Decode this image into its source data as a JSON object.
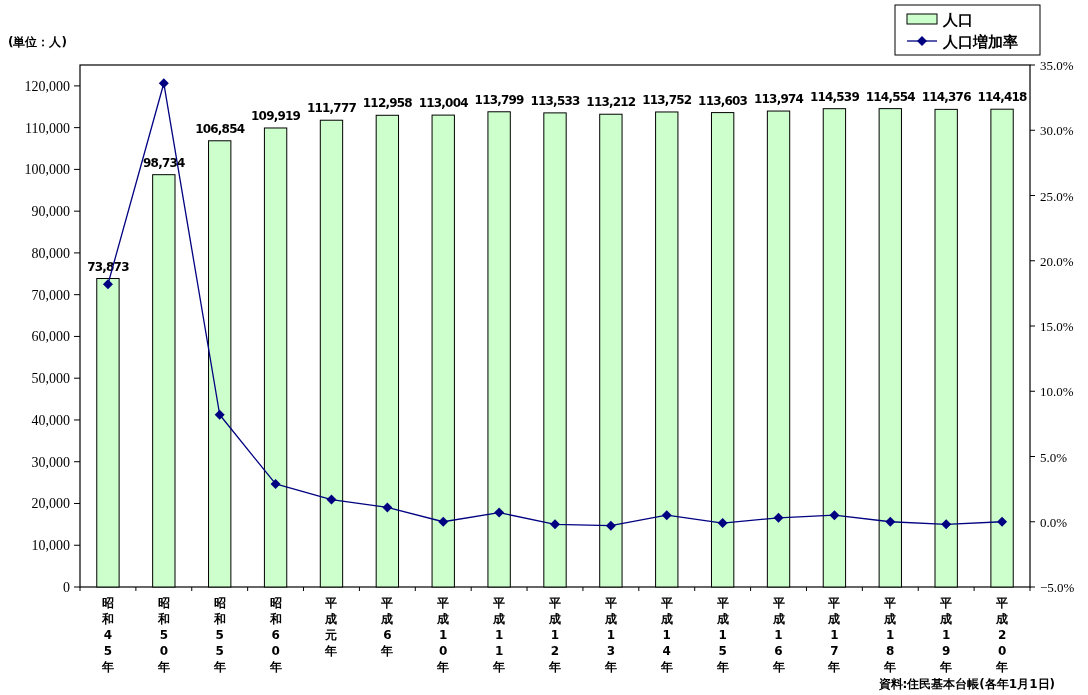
{
  "chart_data": {
    "type": "bar",
    "categories": [
      "昭和45年",
      "昭和50年",
      "昭和55年",
      "昭和60年",
      "平成元年",
      "平成6年",
      "平成10年",
      "平成11年",
      "平成12年",
      "平成13年",
      "平成14年",
      "平成15年",
      "平成16年",
      "平成17年",
      "平成18年",
      "平成19年",
      "平成20年"
    ],
    "series": [
      {
        "name": "人口",
        "color": "#ccffcc",
        "values": [
          73873,
          98734,
          106854,
          109919,
          111777,
          112958,
          113004,
          113799,
          113533,
          113212,
          113752,
          113603,
          113974,
          114539,
          114554,
          114376,
          114418
        ],
        "value_labels": [
          "73,873",
          "98,734",
          "106,854",
          "109,919",
          "111,777",
          "112,958",
          "113,004",
          "113,799",
          "113,533",
          "113,212",
          "113,752",
          "113,603",
          "113,974",
          "114,539",
          "114,554",
          "114,376",
          "114,418"
        ]
      },
      {
        "name": "人口増加率",
        "type": "line",
        "axis": "y2",
        "color": "#000080",
        "values": [
          18.2,
          33.6,
          8.2,
          2.9,
          1.7,
          1.1,
          0.0,
          0.7,
          -0.2,
          -0.3,
          0.5,
          -0.1,
          0.3,
          0.5,
          0.0,
          -0.2,
          0.0
        ]
      }
    ],
    "ylim": [
      0,
      125000
    ],
    "yticks": [
      {
        "value": 0,
        "label": "0"
      },
      {
        "value": 10000,
        "label": "10,000"
      },
      {
        "value": 20000,
        "label": "20,000"
      },
      {
        "value": 30000,
        "label": "30,000"
      },
      {
        "value": 40000,
        "label": "40,000"
      },
      {
        "value": 50000,
        "label": "50,000"
      },
      {
        "value": 60000,
        "label": "60,000"
      },
      {
        "value": 70000,
        "label": "70,000"
      },
      {
        "value": 80000,
        "label": "80,000"
      },
      {
        "value": 90000,
        "label": "90,000"
      },
      {
        "value": 100000,
        "label": "100,000"
      },
      {
        "value": 110000,
        "label": "110,000"
      },
      {
        "value": 120000,
        "label": "120,000"
      }
    ],
    "y2lim": [
      -5,
      35
    ],
    "y2ticks": [
      {
        "value": -5,
        "label": "−5.0%"
      },
      {
        "value": 0,
        "label": "0.0%"
      },
      {
        "value": 5,
        "label": "5.0%"
      },
      {
        "value": 10,
        "label": "10.0%"
      },
      {
        "value": 15,
        "label": "15.0%"
      },
      {
        "value": 20,
        "label": "20.0%"
      },
      {
        "value": 25,
        "label": "25.0%"
      },
      {
        "value": 30,
        "label": "30.0%"
      },
      {
        "value": 35,
        "label": "35.0%"
      }
    ],
    "marker": "diamond",
    "legend": "top right",
    "annotations": [
      "(単位：人)",
      "資料:住民基本台帳(各年1月1日)"
    ]
  }
}
